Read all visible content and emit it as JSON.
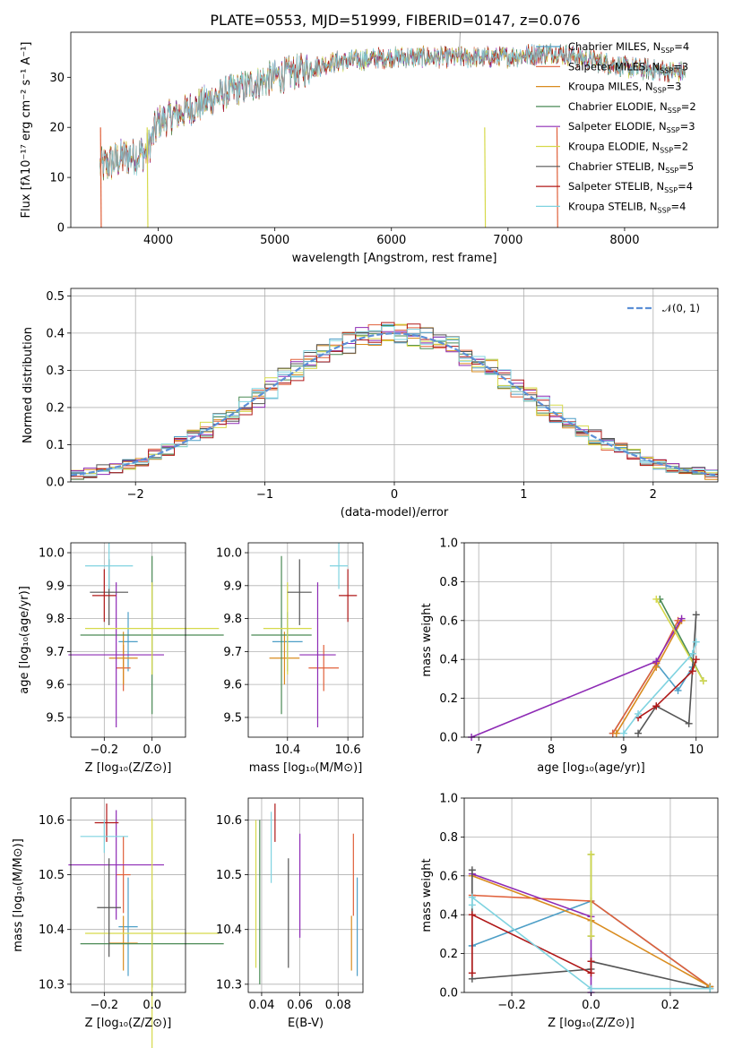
{
  "colors": [
    "#4e9fc7",
    "#e0603a",
    "#d98c1f",
    "#4a8a55",
    "#8e2bb5",
    "#d6d94a",
    "#555555",
    "#b01818",
    "#7fd3e0"
  ],
  "chart_data": [
    {
      "id": "spectrum",
      "type": "line",
      "title": "PLATE=0553, MJD=51999, FIBERID=0147, z=0.076",
      "xlabel": "wavelength [Angstrom, rest frame]",
      "ylabel": "Flux [fλ10⁻¹⁷ erg cm⁻² s⁻¹ A⁻¹]",
      "xlim": [
        3250,
        8800
      ],
      "ylim": [
        0,
        39
      ],
      "xticks": [
        4000,
        5000,
        6000,
        7000,
        8000
      ],
      "yticks": [
        0,
        10,
        20,
        30
      ],
      "grid": false,
      "legend_position": "right",
      "trend": {
        "x": [
          3500,
          3700,
          3900,
          4000,
          4300,
          4600,
          5000,
          5500,
          6000,
          6500,
          7000,
          7400,
          8000,
          8500
        ],
        "y": [
          12,
          14,
          15,
          21,
          24,
          27,
          30,
          33,
          34,
          34,
          34,
          35,
          32,
          31
        ]
      },
      "series": [
        {
          "name": "Chabrier MILES, N",
          "sub": "SSP",
          "suffix": "=4"
        },
        {
          "name": "Salpeter MILES, N",
          "sub": "SSP",
          "suffix": "=3"
        },
        {
          "name": "Kroupa MILES, N",
          "sub": "SSP",
          "suffix": "=3"
        },
        {
          "name": "Chabrier ELODIE, N",
          "sub": "SSP",
          "suffix": "=2"
        },
        {
          "name": "Salpeter ELODIE, N",
          "sub": "SSP",
          "suffix": "=3"
        },
        {
          "name": "Kroupa ELODIE, N",
          "sub": "SSP",
          "suffix": "=2"
        },
        {
          "name": "Chabrier STELIB, N",
          "sub": "SSP",
          "suffix": "=5"
        },
        {
          "name": "Salpeter STELIB, N",
          "sub": "SSP",
          "suffix": "=4"
        },
        {
          "name": "Kroupa STELIB, N",
          "sub": "SSP",
          "suffix": "=4"
        }
      ]
    },
    {
      "id": "residuals",
      "type": "line",
      "xlabel": "(data-model)/error",
      "ylabel": "Normed distribution",
      "xlim": [
        -2.5,
        2.5
      ],
      "ylim": [
        0,
        0.52
      ],
      "xticks": [
        -2,
        -1,
        0,
        1,
        2
      ],
      "xtick_labels": [
        "−2",
        "−1",
        "0",
        "1",
        "2"
      ],
      "yticks": [
        0.0,
        0.1,
        0.2,
        0.3,
        0.4,
        0.5
      ],
      "ytick_labels": [
        "0.0",
        "0.1",
        "0.2",
        "0.3",
        "0.4",
        "0.5"
      ],
      "grid": true,
      "legend": "𝒩(0, 1)",
      "legend_position": "top-right",
      "gaussian": {
        "mean": 0,
        "sigma": 1
      }
    },
    {
      "id": "age_vs_Z",
      "type": "scatter",
      "xlabel": "Z [log₁₀(Z/Z⊙)]",
      "ylabel": "age  [log₁₀(age/yr)]",
      "xlim": [
        -0.34,
        0.14
      ],
      "ylim": [
        9.44,
        10.03
      ],
      "xticks": [
        -0.2,
        0.0
      ],
      "xtick_labels": [
        "−0.2",
        "0.0"
      ],
      "yticks": [
        9.5,
        9.6,
        9.7,
        9.8,
        9.9,
        10.0
      ],
      "ytick_labels": [
        "9.5",
        "9.6",
        "9.7",
        "9.8",
        "9.9",
        "10.0"
      ],
      "grid": true,
      "points": [
        {
          "x": -0.1,
          "y": 9.73,
          "xerr": 0.04,
          "yerr": 0.09
        },
        {
          "x": -0.12,
          "y": 9.65,
          "xerr": 0.03,
          "yerr": 0.07
        },
        {
          "x": -0.12,
          "y": 9.68,
          "xerr": 0.06,
          "yerr": 0.08
        },
        {
          "x": -0.0,
          "y": 9.75,
          "xerr": 0.3,
          "yerr": 0.24
        },
        {
          "x": -0.15,
          "y": 9.69,
          "xerr": 0.2,
          "yerr": 0.22
        },
        {
          "x": 0.0,
          "y": 9.77,
          "xerr": 0.28,
          "yerr": 0.14
        },
        {
          "x": -0.18,
          "y": 9.88,
          "xerr": 0.08,
          "yerr": 0.1
        },
        {
          "x": -0.2,
          "y": 9.87,
          "xerr": 0.05,
          "yerr": 0.08
        },
        {
          "x": -0.18,
          "y": 9.96,
          "xerr": 0.1,
          "yerr": 0.07
        }
      ]
    },
    {
      "id": "age_vs_mass",
      "type": "scatter",
      "xlabel": "mass [log₁₀(M/M⊙)]",
      "xlim": [
        10.27,
        10.65
      ],
      "ylim": [
        9.44,
        10.03
      ],
      "xticks": [
        10.4,
        10.6
      ],
      "xtick_labels": [
        "10.4",
        "10.6"
      ],
      "yticks": [
        9.5,
        9.6,
        9.7,
        9.8,
        9.9,
        10.0
      ],
      "ytick_labels": [
        "9.5",
        "9.6",
        "9.7",
        "9.8",
        "9.9",
        "10.0"
      ],
      "grid": true,
      "points": [
        {
          "x": 10.4,
          "y": 9.73,
          "xerr": 0.05,
          "yerr": 0.09
        },
        {
          "x": 10.52,
          "y": 9.65,
          "xerr": 0.05,
          "yerr": 0.07
        },
        {
          "x": 10.39,
          "y": 9.68,
          "xerr": 0.05,
          "yerr": 0.08
        },
        {
          "x": 10.38,
          "y": 9.75,
          "xerr": 0.1,
          "yerr": 0.24
        },
        {
          "x": 10.5,
          "y": 9.69,
          "xerr": 0.06,
          "yerr": 0.22
        },
        {
          "x": 10.4,
          "y": 9.77,
          "xerr": 0.08,
          "yerr": 0.14
        },
        {
          "x": 10.44,
          "y": 9.88,
          "xerr": 0.04,
          "yerr": 0.1
        },
        {
          "x": 10.6,
          "y": 9.87,
          "xerr": 0.03,
          "yerr": 0.08
        },
        {
          "x": 10.57,
          "y": 9.96,
          "xerr": 0.03,
          "yerr": 0.07
        }
      ]
    },
    {
      "id": "weight_vs_age",
      "type": "line",
      "xlabel": "age  [log₁₀(age/yr)]",
      "ylabel": "mass weight",
      "xlim": [
        6.8,
        10.3
      ],
      "ylim": [
        0,
        1
      ],
      "xticks": [
        7,
        8,
        9,
        10
      ],
      "yticks": [
        0.0,
        0.2,
        0.4,
        0.6,
        0.8,
        1.0
      ],
      "ytick_labels": [
        "0.0",
        "0.2",
        "0.4",
        "0.6",
        "0.8",
        "1.0"
      ],
      "grid": true,
      "series": [
        {
          "x": [
            8.85,
            9.45,
            9.75,
            9.95
          ],
          "y": [
            0.02,
            0.38,
            0.24,
            0.36
          ]
        },
        {
          "x": [
            8.85,
            9.45,
            9.75
          ],
          "y": [
            0.02,
            0.38,
            0.6
          ]
        },
        {
          "x": [
            8.9,
            9.45,
            9.8
          ],
          "y": [
            0.02,
            0.36,
            0.6
          ]
        },
        {
          "x": [
            9.5,
            10.1
          ],
          "y": [
            0.71,
            0.29
          ]
        },
        {
          "x": [
            6.9,
            9.45,
            9.8
          ],
          "y": [
            0.0,
            0.39,
            0.61
          ]
        },
        {
          "x": [
            9.45,
            10.1
          ],
          "y": [
            0.71,
            0.29
          ]
        },
        {
          "x": [
            9.2,
            9.45,
            9.9,
            10.0
          ],
          "y": [
            0.02,
            0.16,
            0.07,
            0.63
          ]
        },
        {
          "x": [
            9.2,
            9.45,
            9.95,
            10.0
          ],
          "y": [
            0.1,
            0.16,
            0.34,
            0.4
          ]
        },
        {
          "x": [
            9.0,
            9.2,
            9.95,
            10.0
          ],
          "y": [
            0.02,
            0.12,
            0.43,
            0.49
          ]
        }
      ]
    },
    {
      "id": "mass_vs_Z",
      "type": "scatter",
      "xlabel": "Z [log₁₀(Z/Z⊙)]",
      "ylabel": "mass [log₁₀(M/M⊙)]",
      "xlim": [
        -0.34,
        0.14
      ],
      "ylim": [
        10.285,
        10.64
      ],
      "xticks": [
        -0.2,
        0.0
      ],
      "xtick_labels": [
        "−0.2",
        "0.0"
      ],
      "yticks": [
        10.3,
        10.4,
        10.5,
        10.6
      ],
      "ytick_labels": [
        "10.3",
        "10.4",
        "10.5",
        "10.6"
      ],
      "grid": true,
      "points": [
        {
          "x": -0.1,
          "y": 10.405,
          "xerr": 0.04,
          "yerr": 0.09
        },
        {
          "x": -0.12,
          "y": 10.5,
          "xerr": 0.03,
          "yerr": 0.07
        },
        {
          "x": -0.12,
          "y": 10.375,
          "xerr": 0.06,
          "yerr": 0.05
        },
        {
          "x": -0.0,
          "y": 10.374,
          "xerr": 0.3,
          "yerr": 0.08
        },
        {
          "x": -0.15,
          "y": 10.518,
          "xerr": 0.2,
          "yerr": 0.1
        },
        {
          "x": 0.0,
          "y": 10.393,
          "xerr": 0.28,
          "yerr": 0.21
        },
        {
          "x": -0.18,
          "y": 10.44,
          "xerr": 0.05,
          "yerr": 0.09
        },
        {
          "x": -0.19,
          "y": 10.595,
          "xerr": 0.05,
          "yerr": 0.035
        },
        {
          "x": -0.2,
          "y": 10.57,
          "xerr": 0.1,
          "yerr": 0.03
        }
      ]
    },
    {
      "id": "mass_vs_ebv",
      "type": "scatter",
      "xlabel": "E(B-V)",
      "xlim": [
        0.033,
        0.093
      ],
      "ylim": [
        10.285,
        10.64
      ],
      "xticks": [
        0.04,
        0.06,
        0.08
      ],
      "xtick_labels": [
        "0.04",
        "0.06",
        "0.08"
      ],
      "yticks": [
        10.3,
        10.4,
        10.5,
        10.6
      ],
      "ytick_labels": [
        "10.3",
        "10.4",
        "10.5",
        "10.6"
      ],
      "grid": true,
      "points": [
        {
          "x": 0.09,
          "y": 10.405,
          "yerr": 0.09
        },
        {
          "x": 0.088,
          "y": 10.5,
          "yerr": 0.075
        },
        {
          "x": 0.087,
          "y": 10.375,
          "yerr": 0.05
        },
        {
          "x": 0.039,
          "y": 10.45,
          "yerr": 0.15
        },
        {
          "x": 0.06,
          "y": 10.48,
          "yerr": 0.095
        },
        {
          "x": 0.037,
          "y": 10.465,
          "yerr": 0.135
        },
        {
          "x": 0.054,
          "y": 10.43,
          "yerr": 0.1
        },
        {
          "x": 0.047,
          "y": 10.595,
          "yerr": 0.035
        },
        {
          "x": 0.045,
          "y": 10.55,
          "yerr": 0.065
        }
      ]
    },
    {
      "id": "weight_vs_Z",
      "type": "line",
      "xlabel": "Z [log₁₀(Z/Z⊙)]",
      "ylabel": "mass weight",
      "xlim": [
        -0.32,
        0.32
      ],
      "ylim": [
        0,
        1
      ],
      "xticks": [
        -0.2,
        0.0,
        0.2
      ],
      "xtick_labels": [
        "−0.2",
        "0.0",
        "0.2"
      ],
      "yticks": [
        0.0,
        0.2,
        0.4,
        0.6,
        0.8,
        1.0
      ],
      "ytick_labels": [
        "0.0",
        "0.2",
        "0.4",
        "0.6",
        "0.8",
        "1.0"
      ],
      "grid": true,
      "series": [
        {
          "x": [
            -0.3,
            -0.3,
            0.0,
            0.3
          ],
          "y": [
            0.24,
            0.24,
            0.47,
            0.03
          ]
        },
        {
          "x": [
            -0.3,
            0.0,
            0.3
          ],
          "y": [
            0.5,
            0.47,
            0.03
          ]
        },
        {
          "x": [
            -0.3,
            0.0,
            0.3
          ],
          "y": [
            0.6,
            0.37,
            0.03
          ]
        },
        {
          "x": [
            0.0,
            0.0
          ],
          "y": [
            0.29,
            0.71
          ]
        },
        {
          "x": [
            -0.3,
            0.0,
            0.0
          ],
          "y": [
            0.61,
            0.39,
            0.0
          ]
        },
        {
          "x": [
            0.0,
            0.0
          ],
          "y": [
            0.29,
            0.71
          ]
        },
        {
          "x": [
            -0.3,
            -0.3,
            0.0,
            0.0,
            0.3
          ],
          "y": [
            0.63,
            0.07,
            0.12,
            0.16,
            0.02
          ]
        },
        {
          "x": [
            -0.3,
            -0.3,
            0.0,
            0.0
          ],
          "y": [
            0.1,
            0.4,
            0.1,
            0.16
          ]
        },
        {
          "x": [
            -0.3,
            -0.3,
            0.0,
            0.3
          ],
          "y": [
            0.45,
            0.49,
            0.02,
            0.02
          ]
        }
      ]
    }
  ]
}
